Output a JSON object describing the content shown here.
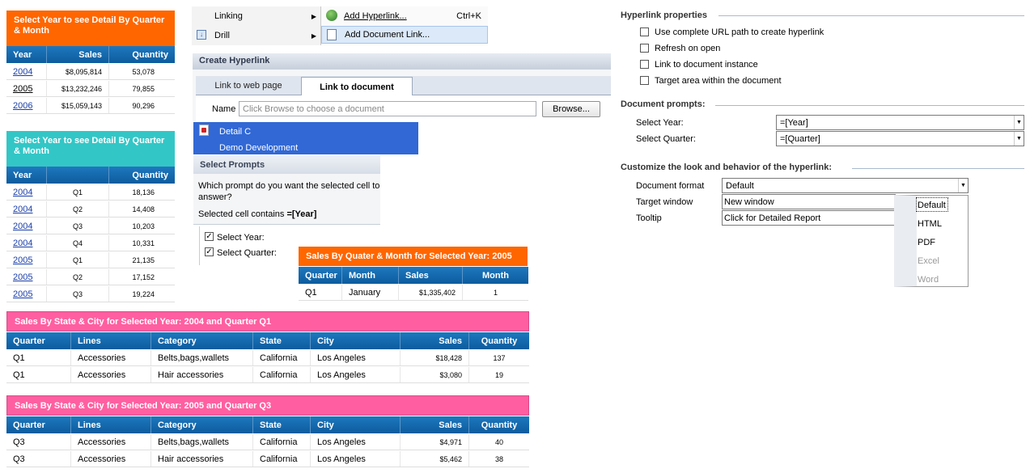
{
  "report1": {
    "title": "Select Year to see Detail By Quarter & Month",
    "headers": [
      "Year",
      "Sales",
      "Quantity"
    ],
    "rows": [
      {
        "year": "2004",
        "sales": "$8,095,814",
        "qty": "53,078"
      },
      {
        "year": "2005",
        "sales": "$13,232,246",
        "qty": "79,855"
      },
      {
        "year": "2006",
        "sales": "$15,059,143",
        "qty": "90,296"
      }
    ]
  },
  "report2": {
    "title": "Select Year to see Detail By Quarter & Month",
    "headers": [
      "Year",
      "",
      "Quantity"
    ],
    "rows": [
      {
        "year": "2004",
        "q": "Q1",
        "qty": "18,136"
      },
      {
        "year": "2004",
        "q": "Q2",
        "qty": "14,408"
      },
      {
        "year": "2004",
        "q": "Q3",
        "qty": "10,203"
      },
      {
        "year": "2004",
        "q": "Q4",
        "qty": "10,331"
      },
      {
        "year": "2005",
        "q": "Q1",
        "qty": "21,135"
      },
      {
        "year": "2005",
        "q": "Q2",
        "qty": "17,152"
      },
      {
        "year": "2005",
        "q": "Q3",
        "qty": "19,224"
      }
    ]
  },
  "menu": {
    "linking": "Linking",
    "drill": "Drill",
    "add_hyperlink": "Add Hyperlink...",
    "add_hyperlink_shortcut": "Ctrl+K",
    "add_document_link": "Add Document Link..."
  },
  "dialog": {
    "title": "Create Hyperlink",
    "tab_web": "Link to web page",
    "tab_doc": "Link to document",
    "name_label": "Name",
    "name_placeholder": "Click Browse to choose a document",
    "browse": "Browse...",
    "tree": [
      "Detail C",
      "Demo Development"
    ]
  },
  "prompts": {
    "title": "Select Prompts",
    "question": "Which prompt do you want the selected cell to answer?",
    "selected_cell": "Selected cell contains",
    "selected_value": "=[Year]",
    "opt_year": "Select Year:",
    "opt_quarter": "Select Quarter:"
  },
  "report3": {
    "title": "Sales By Quater & Month for Selected Year: 2005",
    "headers": [
      "Quarter",
      "Month",
      "Sales",
      "Month"
    ],
    "rows": [
      {
        "q": "Q1",
        "month": "January",
        "sales": "$1,335,402",
        "m": "1"
      }
    ]
  },
  "report4": {
    "title": "Sales By State & City for Selected Year: 2004 and Quarter Q1",
    "headers": [
      "Quarter",
      "Lines",
      "Category",
      "State",
      "City",
      "Sales",
      "Quantity"
    ],
    "rows": [
      {
        "q": "Q1",
        "lines": "Accessories",
        "cat": "Belts,bags,wallets",
        "state": "California",
        "city": "Los Angeles",
        "sales": "$18,428",
        "qty": "137"
      },
      {
        "q": "Q1",
        "lines": "Accessories",
        "cat": "Hair accessories",
        "state": "California",
        "city": "Los Angeles",
        "sales": "$3,080",
        "qty": "19"
      }
    ]
  },
  "report5": {
    "title": "Sales By State & City for Selected Year: 2005 and Quarter Q3",
    "headers": [
      "Quarter",
      "Lines",
      "Category",
      "State",
      "City",
      "Sales",
      "Quantity"
    ],
    "rows": [
      {
        "q": "Q3",
        "lines": "Accessories",
        "cat": "Belts,bags,wallets",
        "state": "California",
        "city": "Los Angeles",
        "sales": "$4,971",
        "qty": "40"
      },
      {
        "q": "Q3",
        "lines": "Accessories",
        "cat": "Hair accessories",
        "state": "California",
        "city": "Los Angeles",
        "sales": "$5,462",
        "qty": "38"
      }
    ]
  },
  "props": {
    "hyperlink_title": "Hyperlink properties",
    "opt1": "Use complete URL path to create hyperlink",
    "opt2": "Refresh on open",
    "opt3": "Link to document instance",
    "opt4": "Target area within the document",
    "doc_prompts_title": "Document prompts:",
    "select_year_label": "Select Year:",
    "select_year_value": "=[Year]",
    "select_quarter_label": "Select Quarter:",
    "select_quarter_value": "=[Quarter]",
    "customize_title": "Customize the look and behavior of the hyperlink:",
    "doc_format_label": "Document format",
    "doc_format_value": "Default",
    "target_window_label": "Target window",
    "target_window_value": "New window",
    "tooltip_label": "Tooltip",
    "tooltip_value": "Click for Detailed Report",
    "format_options": [
      "Default",
      "HTML",
      "PDF",
      "Excel",
      "Word"
    ]
  },
  "colors": {
    "orange": "#ff6600",
    "teal": "#33c6c6",
    "pink": "#ff5fa0",
    "header_blue": "#0f63a6",
    "selection_blue": "#3168d5"
  }
}
